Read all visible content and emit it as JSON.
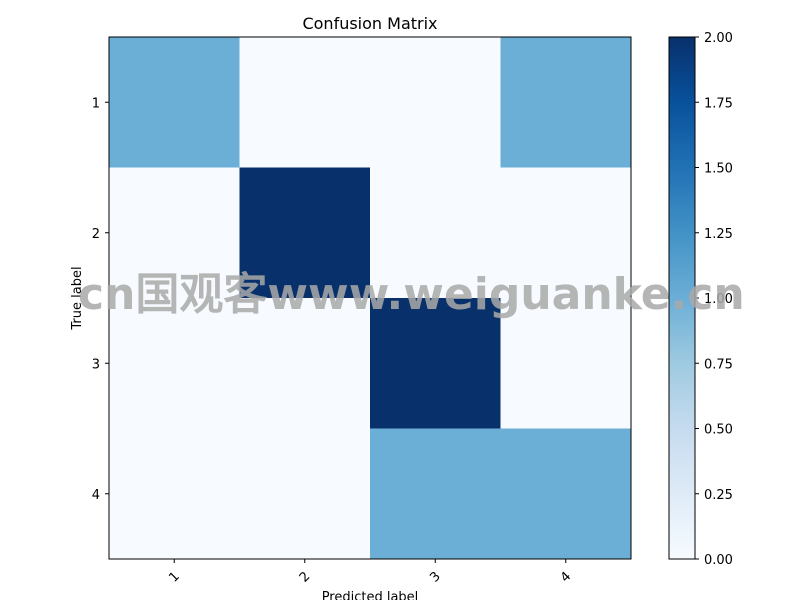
{
  "chart_data": {
    "type": "heatmap",
    "title": "Confusion Matrix",
    "xlabel": "Predicted label",
    "ylabel": "True label",
    "x_categories": [
      "1",
      "2",
      "3",
      "4"
    ],
    "y_categories": [
      "1",
      "2",
      "3",
      "4"
    ],
    "values": [
      [
        1,
        0,
        0,
        1
      ],
      [
        0,
        2,
        0,
        0
      ],
      [
        0,
        0,
        2,
        0
      ],
      [
        0,
        0,
        1,
        1
      ]
    ],
    "colormap": "Blues",
    "value_range": [
      0,
      2
    ],
    "colorbar_ticks": [
      "0.00",
      "0.25",
      "0.50",
      "0.75",
      "1.00",
      "1.25",
      "1.50",
      "1.75",
      "2.00"
    ],
    "colors": {
      "low": "#f7fbff",
      "mid": "#6baed6",
      "high": "#08306b"
    },
    "grid": false
  },
  "watermark": {
    "text": "cn国观客www.weiguanke.cn"
  }
}
